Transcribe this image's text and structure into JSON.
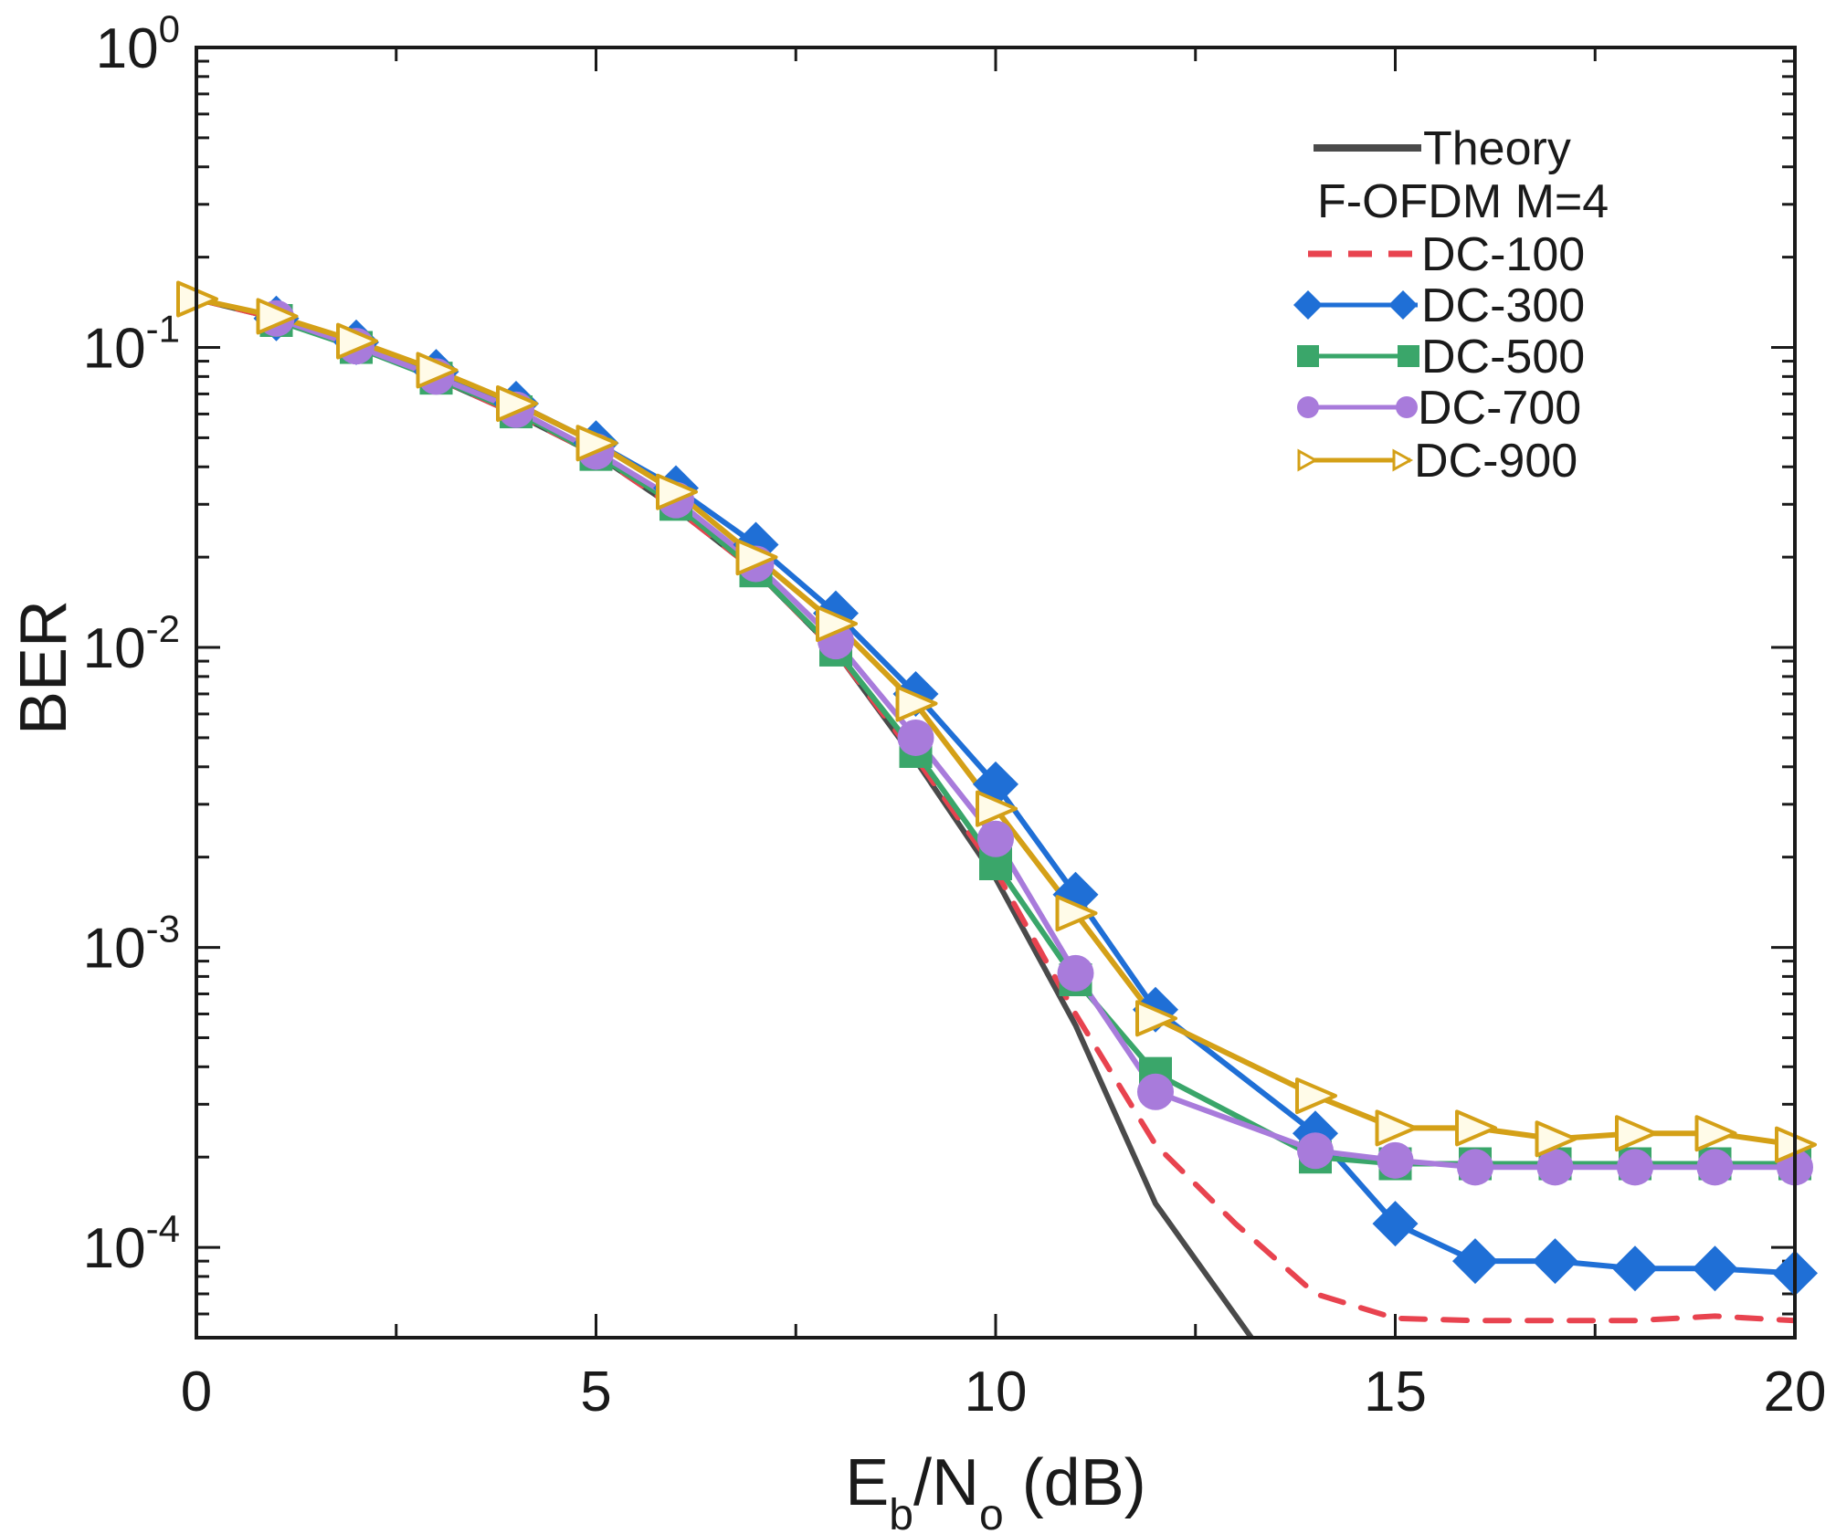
{
  "chart_data": {
    "type": "line",
    "title": "",
    "xlabel": {
      "main": "E",
      "sub1": "b",
      "mid": "/N",
      "sub2": "o",
      "tail": " (dB)"
    },
    "ylabel": "BER",
    "xlim": [
      0,
      20
    ],
    "ylim": [
      5e-05,
      1
    ],
    "yscale": "log",
    "x_ticks": [
      0,
      5,
      10,
      15,
      20
    ],
    "x_tick_labels": [
      "0",
      "5",
      "10",
      "15",
      "20"
    ],
    "y_ticks": [
      {
        "value": 1,
        "base": "10",
        "exp": "0"
      },
      {
        "value": 0.1,
        "base": "10",
        "exp": "-1"
      },
      {
        "value": 0.01,
        "base": "10",
        "exp": "-2"
      },
      {
        "value": 0.001,
        "base": "10",
        "exp": "-3"
      },
      {
        "value": 0.0001,
        "base": "10",
        "exp": "-4"
      }
    ],
    "legend": {
      "position": "top-right",
      "entries": [
        "Theory",
        "F-OFDM M=4",
        "DC-100",
        "DC-300",
        "DC-500",
        "DC-700",
        "DC-900"
      ]
    },
    "series": [
      {
        "name": "Theory",
        "color": "#4a4a4a",
        "dash": "solid",
        "marker": "none",
        "x": [
          0,
          1,
          2,
          3,
          4,
          5,
          6,
          7,
          8,
          9,
          10,
          11,
          12,
          13.2
        ],
        "y": [
          0.145,
          0.125,
          0.101,
          0.079,
          0.06,
          0.044,
          0.029,
          0.018,
          0.0097,
          0.0042,
          0.0017,
          0.00055,
          0.00014,
          5e-05
        ]
      },
      {
        "name": "DC-100",
        "color": "#e8434f",
        "dash": "dashed",
        "marker": "none",
        "x": [
          0,
          1,
          2,
          3,
          4,
          5,
          6,
          7,
          8,
          9,
          10,
          11,
          12,
          13,
          14,
          15,
          16,
          17,
          18,
          19,
          20
        ],
        "y": [
          0.145,
          0.125,
          0.101,
          0.079,
          0.06,
          0.044,
          0.029,
          0.018,
          0.0097,
          0.0043,
          0.0018,
          0.0006,
          0.00022,
          0.00012,
          7e-05,
          5.8e-05,
          5.7e-05,
          5.7e-05,
          5.7e-05,
          5.9e-05,
          5.7e-05
        ]
      },
      {
        "name": "DC-300",
        "color": "#1f6fd6",
        "dash": "solid",
        "marker": "diamond",
        "x": [
          1,
          2,
          3,
          4,
          5,
          6,
          7,
          8,
          9,
          10,
          11,
          12,
          14,
          15,
          16,
          17,
          18,
          19,
          20
        ],
        "y": [
          0.125,
          0.104,
          0.083,
          0.065,
          0.048,
          0.034,
          0.022,
          0.013,
          0.007,
          0.0035,
          0.0015,
          0.00062,
          0.00024,
          0.00012,
          9e-05,
          9e-05,
          8.5e-05,
          8.5e-05,
          8.2e-05
        ]
      },
      {
        "name": "DC-500",
        "color": "#3aa66a",
        "dash": "solid",
        "marker": "square",
        "x": [
          1,
          2,
          3,
          4,
          5,
          6,
          7,
          8,
          9,
          10,
          11,
          12,
          14,
          15,
          16,
          17,
          18,
          19,
          20
        ],
        "y": [
          0.123,
          0.1,
          0.079,
          0.061,
          0.044,
          0.03,
          0.018,
          0.0098,
          0.0045,
          0.0019,
          0.00078,
          0.00038,
          0.0002,
          0.00019,
          0.00019,
          0.00019,
          0.00019,
          0.00019,
          0.00019
        ]
      },
      {
        "name": "DC-700",
        "color": "#a87bdb",
        "dash": "solid",
        "marker": "circle",
        "x": [
          1,
          2,
          3,
          4,
          5,
          6,
          7,
          8,
          9,
          10,
          11,
          12,
          14,
          15,
          16,
          17,
          18,
          19,
          20
        ],
        "y": [
          0.125,
          0.101,
          0.08,
          0.062,
          0.045,
          0.031,
          0.019,
          0.0105,
          0.005,
          0.0023,
          0.00082,
          0.00033,
          0.00021,
          0.000195,
          0.000185,
          0.000185,
          0.000185,
          0.000185,
          0.000185
        ]
      },
      {
        "name": "DC-900",
        "color": "#d4a017",
        "dash": "solid",
        "marker": "triangle-right",
        "x": [
          0,
          1,
          2,
          3,
          4,
          5,
          6,
          7,
          8,
          9,
          10,
          11,
          12,
          14,
          15,
          16,
          17,
          18,
          19,
          20
        ],
        "y": [
          0.145,
          0.127,
          0.105,
          0.084,
          0.065,
          0.048,
          0.033,
          0.02,
          0.012,
          0.0065,
          0.0029,
          0.0013,
          0.00058,
          0.00032,
          0.00025,
          0.00025,
          0.00023,
          0.00024,
          0.00024,
          0.00022
        ]
      }
    ]
  }
}
